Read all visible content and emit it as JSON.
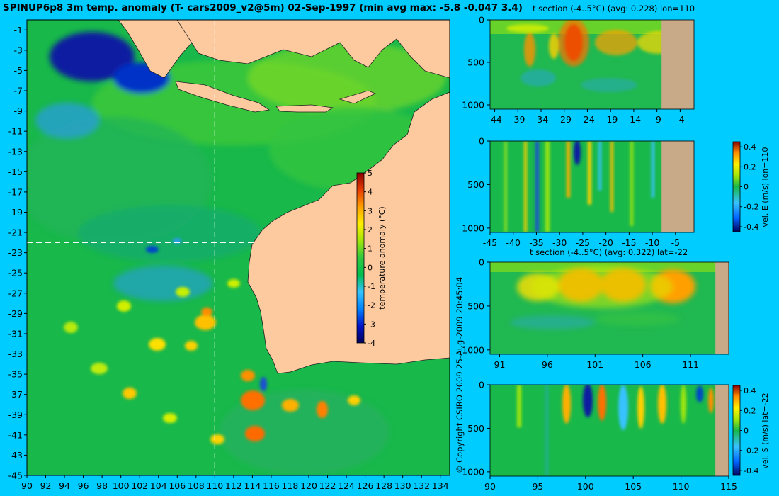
{
  "header": {
    "title": "SPINUP6p8 3m temp. anomaly (T- cars2009_v2@5m) 02-Sep-1997 (min avg max: -5.8 -0.047 3.4)",
    "copyright": "© Copyright CSIRO 2009   25-Aug-2009 20:45:04"
  },
  "colors": {
    "background": "#00ccff",
    "land": "#fdcaa0",
    "seafloor": "#c8aa88",
    "ocean_base": "#18b84a",
    "guide_line": "#ffffff",
    "colormap": [
      "#00005a",
      "#0014c8",
      "#0082ff",
      "#37c3ff",
      "#00be50",
      "#30c840",
      "#a0e60a",
      "#fff000",
      "#ffa000",
      "#e83c00",
      "#8c0000"
    ]
  },
  "chart_data": [
    {
      "type": "heatmap",
      "id": "map",
      "title": "SPINUP6p8 3m temp. anomaly (T- cars2009_v2@5m) 02-Sep-1997",
      "x_ticks": [
        90,
        92,
        94,
        96,
        98,
        100,
        102,
        104,
        106,
        108,
        110,
        112,
        114,
        116,
        118,
        120,
        122,
        124,
        126,
        128,
        130,
        132,
        134
      ],
      "y_ticks": [
        -1,
        -3,
        -5,
        -7,
        -9,
        -11,
        -13,
        -15,
        -17,
        -19,
        -21,
        -23,
        -25,
        -27,
        -29,
        -31,
        -33,
        -35,
        -37,
        -39,
        -41,
        -43,
        -45
      ],
      "xlim": [
        90,
        135
      ],
      "ylim": [
        -45,
        0
      ],
      "guide_lon": 110,
      "guide_lat": -22,
      "colorbar": {
        "label": "temperature anomaly (°C)",
        "ticks": [
          5,
          4,
          3,
          2,
          1,
          0,
          -1,
          -2,
          -3,
          -4
        ],
        "range": [
          -4,
          5
        ]
      },
      "stats": {
        "min": -5.8,
        "avg": -0.047,
        "max": 3.4
      }
    },
    {
      "type": "heatmap",
      "id": "t_section_lon",
      "title": "t section (-4..5°C) (avg: 0.228) lon=110",
      "x_ticks": [
        -44,
        -39,
        -34,
        -29,
        -24,
        -19,
        -14,
        -9,
        -4
      ],
      "y_ticks": [
        0,
        500,
        1000
      ],
      "xlim": [
        -45,
        -1
      ],
      "ylim": [
        1050,
        0
      ],
      "seafloor_from": -8
    },
    {
      "type": "heatmap",
      "id": "vel_e_section",
      "title": "",
      "x_ticks": [
        -45,
        -40,
        -35,
        -30,
        -25,
        -20,
        -15,
        -10,
        -5
      ],
      "y_ticks": [
        0,
        500,
        1000
      ],
      "xlim": [
        -45,
        -1
      ],
      "ylim": [
        1050,
        0
      ],
      "seafloor_from": -8,
      "colorbar": {
        "label": "vel. E (m/s) lon=110",
        "ticks": [
          "0.4",
          "0.2",
          "0",
          "-0.2",
          "-0.4"
        ],
        "range": [
          -0.45,
          0.45
        ]
      }
    },
    {
      "type": "heatmap",
      "id": "t_section_lat",
      "title": "t section (-4..5°C) (avg: 0.322) lat=-22",
      "x_ticks": [
        91,
        96,
        101,
        106,
        111
      ],
      "y_ticks": [
        0,
        500,
        1000
      ],
      "xlim": [
        90,
        115
      ],
      "ylim": [
        1050,
        0
      ],
      "seafloor_from": 113.6
    },
    {
      "type": "heatmap",
      "id": "vel_s_section",
      "title": "",
      "x_ticks": [
        90,
        95,
        100,
        105,
        110,
        115
      ],
      "y_ticks": [
        0,
        500,
        1000
      ],
      "xlim": [
        90,
        115
      ],
      "ylim": [
        1050,
        0
      ],
      "seafloor_from": 113.6,
      "colorbar": {
        "label": "vel. S (m/s) lat=-22",
        "ticks": [
          "0.4",
          "0.2",
          "0",
          "-0.2",
          "-0.4"
        ],
        "range": [
          -0.45,
          0.45
        ]
      }
    }
  ]
}
